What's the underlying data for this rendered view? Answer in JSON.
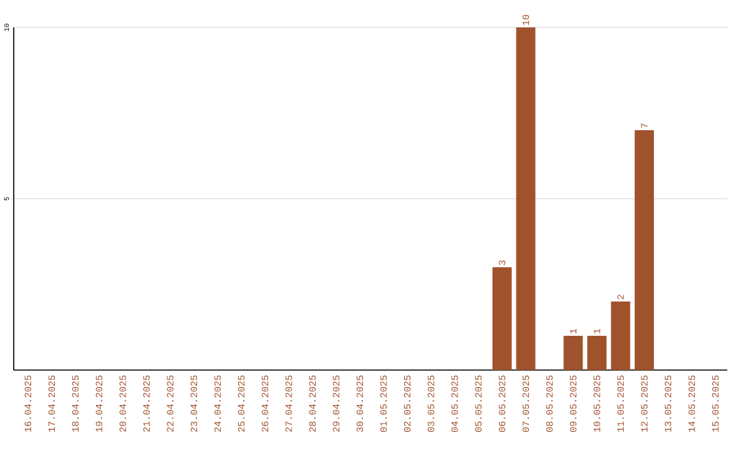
{
  "chart_data": {
    "type": "bar",
    "categories": [
      "16.04.2025",
      "17.04.2025",
      "18.04.2025",
      "19.04.2025",
      "20.04.2025",
      "21.04.2025",
      "22.04.2025",
      "23.04.2025",
      "24.04.2025",
      "25.04.2025",
      "26.04.2025",
      "27.04.2025",
      "28.04.2025",
      "29.04.2025",
      "30.04.2025",
      "01.05.2025",
      "02.05.2025",
      "03.05.2025",
      "04.05.2025",
      "05.05.2025",
      "06.05.2025",
      "07.05.2025",
      "08.05.2025",
      "09.05.2025",
      "10.05.2025",
      "11.05.2025",
      "12.05.2025",
      "13.05.2025",
      "14.05.2025",
      "15.05.2025"
    ],
    "values": [
      0,
      0,
      0,
      0,
      0,
      0,
      0,
      0,
      0,
      0,
      0,
      0,
      0,
      0,
      0,
      0,
      0,
      0,
      0,
      0,
      3,
      10,
      0,
      1,
      1,
      2,
      7,
      0,
      0,
      0
    ],
    "value_labels": [
      null,
      null,
      null,
      null,
      null,
      null,
      null,
      null,
      null,
      null,
      null,
      null,
      null,
      null,
      null,
      null,
      null,
      null,
      null,
      null,
      "3",
      "10",
      null,
      "1",
      "1",
      "2",
      "7",
      null,
      null,
      null
    ],
    "color": "#a0522d",
    "ylim": [
      0,
      10
    ],
    "yticks": [
      5,
      10
    ],
    "grid": "y"
  }
}
